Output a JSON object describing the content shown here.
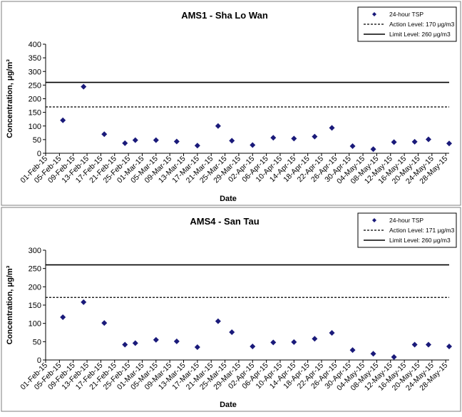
{
  "colors": {
    "marker": "#1a1a7a",
    "line": "#000000",
    "border": "#7f7f7f",
    "grid": "#000000"
  },
  "chart_data": [
    {
      "type": "scatter",
      "title": "AMS1 - Sha Lo Wan",
      "xlabel": "Date",
      "ylabel": "Concentration, μg/m³",
      "ylim": [
        0,
        400
      ],
      "yticks": [
        "0",
        "50",
        "100",
        "150",
        "200",
        "250",
        "300",
        "350",
        "400"
      ],
      "xticks": [
        "01-Feb-15",
        "05-Feb-15",
        "09-Feb-15",
        "13-Feb-15",
        "17-Feb-15",
        "21-Feb-15",
        "25-Feb-15",
        "01-Mar-15",
        "05-Mar-15",
        "09-Mar-15",
        "13-Mar-15",
        "17-Mar-15",
        "21-Mar-15",
        "25-Mar-15",
        "29-Mar-15",
        "02-Apr-15",
        "06-Apr-15",
        "10-Apr-15",
        "14-Apr-15",
        "18-Apr-15",
        "22-Apr-15",
        "26-Apr-15",
        "30-Apr-15",
        "04-May-15",
        "08-May-15",
        "12-May-15",
        "16-May-15",
        "20-May-15",
        "24-May-15",
        "28-May-15"
      ],
      "legend": [
        {
          "label": "24-hour TSP",
          "style": "marker"
        },
        {
          "label": "Action Level: 170 μg/m3",
          "style": "dashed"
        },
        {
          "label": "Limit Level: 260 μg/m3",
          "style": "solid"
        }
      ],
      "legend_position": "top-right",
      "action_level": 170,
      "limit_level": 260,
      "series": [
        {
          "name": "24-hour TSP",
          "points": [
            {
              "x": "06-Feb-15",
              "y": 121
            },
            {
              "x": "12-Feb-15",
              "y": 244
            },
            {
              "x": "18-Feb-15",
              "y": 70
            },
            {
              "x": "24-Feb-15",
              "y": 37
            },
            {
              "x": "27-Feb-15",
              "y": 48
            },
            {
              "x": "05-Mar-15",
              "y": 48
            },
            {
              "x": "11-Mar-15",
              "y": 43
            },
            {
              "x": "17-Mar-15",
              "y": 28
            },
            {
              "x": "23-Mar-15",
              "y": 100
            },
            {
              "x": "27-Mar-15",
              "y": 46
            },
            {
              "x": "02-Apr-15",
              "y": 30
            },
            {
              "x": "08-Apr-15",
              "y": 57
            },
            {
              "x": "14-Apr-15",
              "y": 54
            },
            {
              "x": "20-Apr-15",
              "y": 61
            },
            {
              "x": "25-Apr-15",
              "y": 93
            },
            {
              "x": "01-May-15",
              "y": 26
            },
            {
              "x": "07-May-15",
              "y": 15
            },
            {
              "x": "13-May-15",
              "y": 41
            },
            {
              "x": "19-May-15",
              "y": 42
            },
            {
              "x": "23-May-15",
              "y": 51
            },
            {
              "x": "29-May-15",
              "y": 36
            }
          ]
        }
      ]
    },
    {
      "type": "scatter",
      "title": "AMS4 - San Tau",
      "xlabel": "Date",
      "ylabel": "Concentration, μg/m³",
      "ylim": [
        0,
        300
      ],
      "yticks": [
        "0",
        "50",
        "100",
        "150",
        "200",
        "250",
        "300"
      ],
      "xticks": [
        "01-Feb-15",
        "05-Feb-15",
        "09-Feb-15",
        "13-Feb-15",
        "17-Feb-15",
        "21-Feb-15",
        "25-Feb-15",
        "01-Mar-15",
        "05-Mar-15",
        "09-Mar-15",
        "13-Mar-15",
        "17-Mar-15",
        "21-Mar-15",
        "25-Mar-15",
        "29-Mar-15",
        "02-Apr-15",
        "06-Apr-15",
        "10-Apr-15",
        "14-Apr-15",
        "18-Apr-15",
        "22-Apr-15",
        "26-Apr-15",
        "30-Apr-15",
        "04-May-15",
        "08-May-15",
        "12-May-15",
        "16-May-15",
        "20-May-15",
        "24-May-15",
        "28-May-15"
      ],
      "legend": [
        {
          "label": "24-hour TSP",
          "style": "marker"
        },
        {
          "label": "Action Level: 171 μg/m3",
          "style": "dashed"
        },
        {
          "label": "Limit Level: 260 μg/m3",
          "style": "solid"
        }
      ],
      "legend_position": "top-right",
      "action_level": 171,
      "limit_level": 260,
      "series": [
        {
          "name": "24-hour TSP",
          "points": [
            {
              "x": "06-Feb-15",
              "y": 117
            },
            {
              "x": "12-Feb-15",
              "y": 158
            },
            {
              "x": "18-Feb-15",
              "y": 101
            },
            {
              "x": "24-Feb-15",
              "y": 42
            },
            {
              "x": "27-Feb-15",
              "y": 46
            },
            {
              "x": "05-Mar-15",
              "y": 55
            },
            {
              "x": "11-Mar-15",
              "y": 51
            },
            {
              "x": "17-Mar-15",
              "y": 35
            },
            {
              "x": "23-Mar-15",
              "y": 106
            },
            {
              "x": "27-Mar-15",
              "y": 76
            },
            {
              "x": "02-Apr-15",
              "y": 37
            },
            {
              "x": "08-Apr-15",
              "y": 48
            },
            {
              "x": "14-Apr-15",
              "y": 49
            },
            {
              "x": "20-Apr-15",
              "y": 58
            },
            {
              "x": "25-Apr-15",
              "y": 74
            },
            {
              "x": "01-May-15",
              "y": 27
            },
            {
              "x": "07-May-15",
              "y": 17
            },
            {
              "x": "13-May-15",
              "y": 8
            },
            {
              "x": "19-May-15",
              "y": 42
            },
            {
              "x": "23-May-15",
              "y": 42
            },
            {
              "x": "29-May-15",
              "y": 37
            }
          ]
        }
      ]
    }
  ]
}
